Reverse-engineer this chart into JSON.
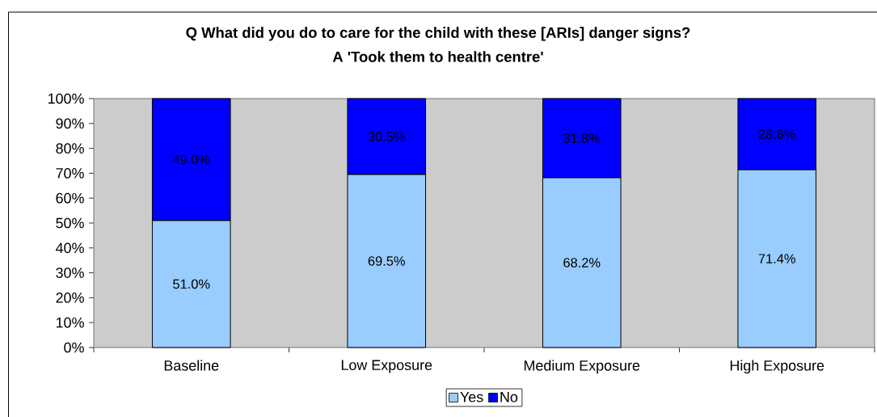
{
  "chart_data": {
    "type": "bar",
    "title": "Q What did you do to care for the child with these [ARIs] danger signs?",
    "subtitle": "A 'Took them to health centre'",
    "categories": [
      "Baseline",
      "Low Exposure",
      "Medium Exposure",
      "High Exposure"
    ],
    "series": [
      {
        "name": "Yes",
        "color": "#99ccff",
        "values": [
          51.0,
          69.5,
          68.2,
          71.4
        ],
        "value_labels": [
          "51.0%",
          "69.5%",
          "68.2%",
          "71.4%"
        ]
      },
      {
        "name": "No",
        "color": "#0000ff",
        "values": [
          49.0,
          30.5,
          31.8,
          28.6
        ],
        "value_labels": [
          "49.0%",
          "30.5%",
          "31.8%",
          "28.6%"
        ]
      }
    ],
    "stacked": true,
    "ylim": [
      0,
      100
    ],
    "yticks": [
      {
        "value": 0,
        "label": "0%"
      },
      {
        "value": 10,
        "label": "10%"
      },
      {
        "value": 20,
        "label": "20%"
      },
      {
        "value": 30,
        "label": "30%"
      },
      {
        "value": 40,
        "label": "40%"
      },
      {
        "value": 50,
        "label": "50%"
      },
      {
        "value": 60,
        "label": "60%"
      },
      {
        "value": 70,
        "label": "70%"
      },
      {
        "value": 80,
        "label": "80%"
      },
      {
        "value": 90,
        "label": "90%"
      },
      {
        "value": 100,
        "label": "100%"
      }
    ],
    "legend": "bottom"
  }
}
